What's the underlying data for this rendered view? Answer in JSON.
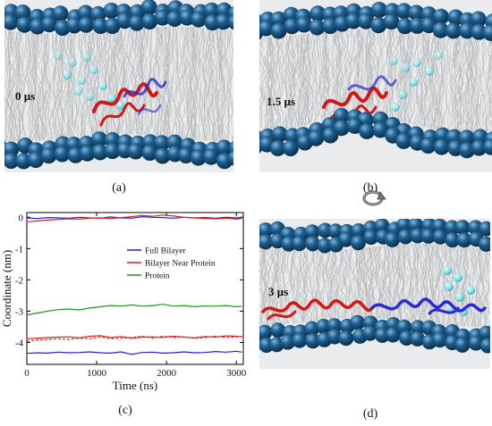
{
  "panels": {
    "a": {
      "caption": "(a)",
      "time_label": "0 µs"
    },
    "b": {
      "caption": "(b)",
      "time_label": "1.5 µs"
    },
    "c": {
      "caption": "(c)"
    },
    "d": {
      "caption": "(d)",
      "time_label": "3 µs"
    }
  },
  "rotate_icon": "rotate-arrow-icon",
  "colors": {
    "headgroup": "#1d5d8c",
    "water": "#7ee6ea",
    "protein_red": "#d31616",
    "protein_blue": "#2a2ad0",
    "full_bilayer": "#1f1fe0",
    "near_protein": "#e01f1f",
    "protein_line": "#1a9a1a"
  },
  "chart_data": {
    "type": "line",
    "xlabel": "Time (ns)",
    "ylabel": "Coordinate (nm)",
    "xlim": [
      0,
      3100
    ],
    "ylim": [
      -4.7,
      0.15
    ],
    "xticks": [
      "0",
      "1000",
      "2000",
      "3000"
    ],
    "yticks": [
      "0",
      "-1",
      "-2",
      "-3",
      "-4"
    ],
    "legend_position": "upper-center",
    "series": [
      {
        "name": "Full Bilayer",
        "color": "#1f1fe0",
        "legend": true,
        "x": [
          0,
          150,
          300,
          450,
          600,
          750,
          900,
          1050,
          1200,
          1350,
          1500,
          1650,
          1800,
          1950,
          2100,
          2250,
          2400,
          2550,
          2700,
          2850,
          3000,
          3080
        ],
        "y": [
          -4.35,
          -4.33,
          -4.34,
          -4.31,
          -4.33,
          -4.32,
          -4.3,
          -4.33,
          -4.34,
          -4.3,
          -4.38,
          -4.32,
          -4.31,
          -4.34,
          -4.33,
          -4.3,
          -4.33,
          -4.32,
          -4.29,
          -4.31,
          -4.28,
          -4.31
        ]
      },
      {
        "name": "Full Bilayer (upper)",
        "color": "#1f1fe0",
        "legend": false,
        "x": [
          0,
          150,
          300,
          450,
          600,
          750,
          900,
          1050,
          1200,
          1350,
          1500,
          1650,
          1800,
          1950,
          2100,
          2250,
          2400,
          2550,
          2700,
          2850,
          3000,
          3080
        ],
        "y": [
          -0.02,
          -0.04,
          -0.01,
          -0.02,
          -0.03,
          0.0,
          -0.02,
          -0.03,
          0.01,
          -0.02,
          -0.03,
          0.02,
          0.0,
          -0.01,
          -0.03,
          0.0,
          -0.02,
          -0.01,
          -0.03,
          0.0,
          -0.02,
          -0.01
        ]
      },
      {
        "name": "Bilayer Near Protein",
        "color": "#e01f1f",
        "legend": true,
        "x": [
          0,
          150,
          300,
          450,
          600,
          750,
          900,
          1050,
          1200,
          1350,
          1500,
          1650,
          1800,
          1950,
          2100,
          2250,
          2400,
          2550,
          2700,
          2850,
          3000,
          3080
        ],
        "y": [
          -3.88,
          -3.86,
          -3.84,
          -3.83,
          -3.82,
          -3.85,
          -3.8,
          -3.78,
          -3.84,
          -3.81,
          -3.86,
          -3.83,
          -3.82,
          -3.84,
          -3.8,
          -3.83,
          -3.85,
          -3.81,
          -3.83,
          -3.79,
          -3.8,
          -3.82
        ]
      },
      {
        "name": "Bilayer Near Protein (dashed)",
        "color": "#e01f1f",
        "dashed": true,
        "legend": false,
        "x": [
          0,
          150,
          300,
          450,
          600,
          750,
          900,
          1050,
          1200,
          1350,
          1500,
          1650,
          1800,
          1950,
          2100,
          2250,
          2400,
          2550,
          2700,
          2850,
          3000,
          3080
        ],
        "y": [
          -3.96,
          -3.92,
          -3.9,
          -3.88,
          -3.9,
          -3.86,
          -3.88,
          -3.82,
          -3.88,
          -3.86,
          -3.84,
          -3.8,
          -3.86,
          -3.8,
          -3.84,
          -3.82,
          -3.86,
          -3.84,
          -3.8,
          -3.84,
          -3.82,
          -3.8
        ]
      },
      {
        "name": "Bilayer Near Protein (upper)",
        "color": "#e01f1f",
        "legend": false,
        "x": [
          0,
          150,
          300,
          450,
          600,
          750,
          900,
          1050,
          1200,
          1350,
          1500,
          1650,
          1800,
          1950,
          2100,
          2250,
          2400,
          2550,
          2700,
          2850,
          3000,
          3080
        ],
        "y": [
          -0.14,
          -0.12,
          -0.09,
          -0.07,
          -0.05,
          -0.06,
          -0.03,
          -0.02,
          -0.04,
          -0.01,
          0.02,
          0.06,
          0.03,
          0.07,
          0.04,
          0.0,
          -0.02,
          -0.04,
          -0.05,
          -0.03,
          -0.06,
          -0.04
        ]
      },
      {
        "name": "Protein",
        "color": "#1a9a1a",
        "legend": true,
        "x": [
          0,
          150,
          300,
          450,
          600,
          750,
          900,
          1050,
          1200,
          1350,
          1500,
          1650,
          1800,
          1950,
          2100,
          2250,
          2400,
          2550,
          2700,
          2850,
          3000,
          3080
        ],
        "y": [
          -3.12,
          -3.06,
          -3.0,
          -2.95,
          -2.93,
          -2.96,
          -2.9,
          -2.86,
          -2.82,
          -2.84,
          -2.8,
          -2.84,
          -2.82,
          -2.78,
          -2.84,
          -2.82,
          -2.86,
          -2.83,
          -2.84,
          -2.82,
          -2.86,
          -2.84
        ]
      }
    ]
  }
}
